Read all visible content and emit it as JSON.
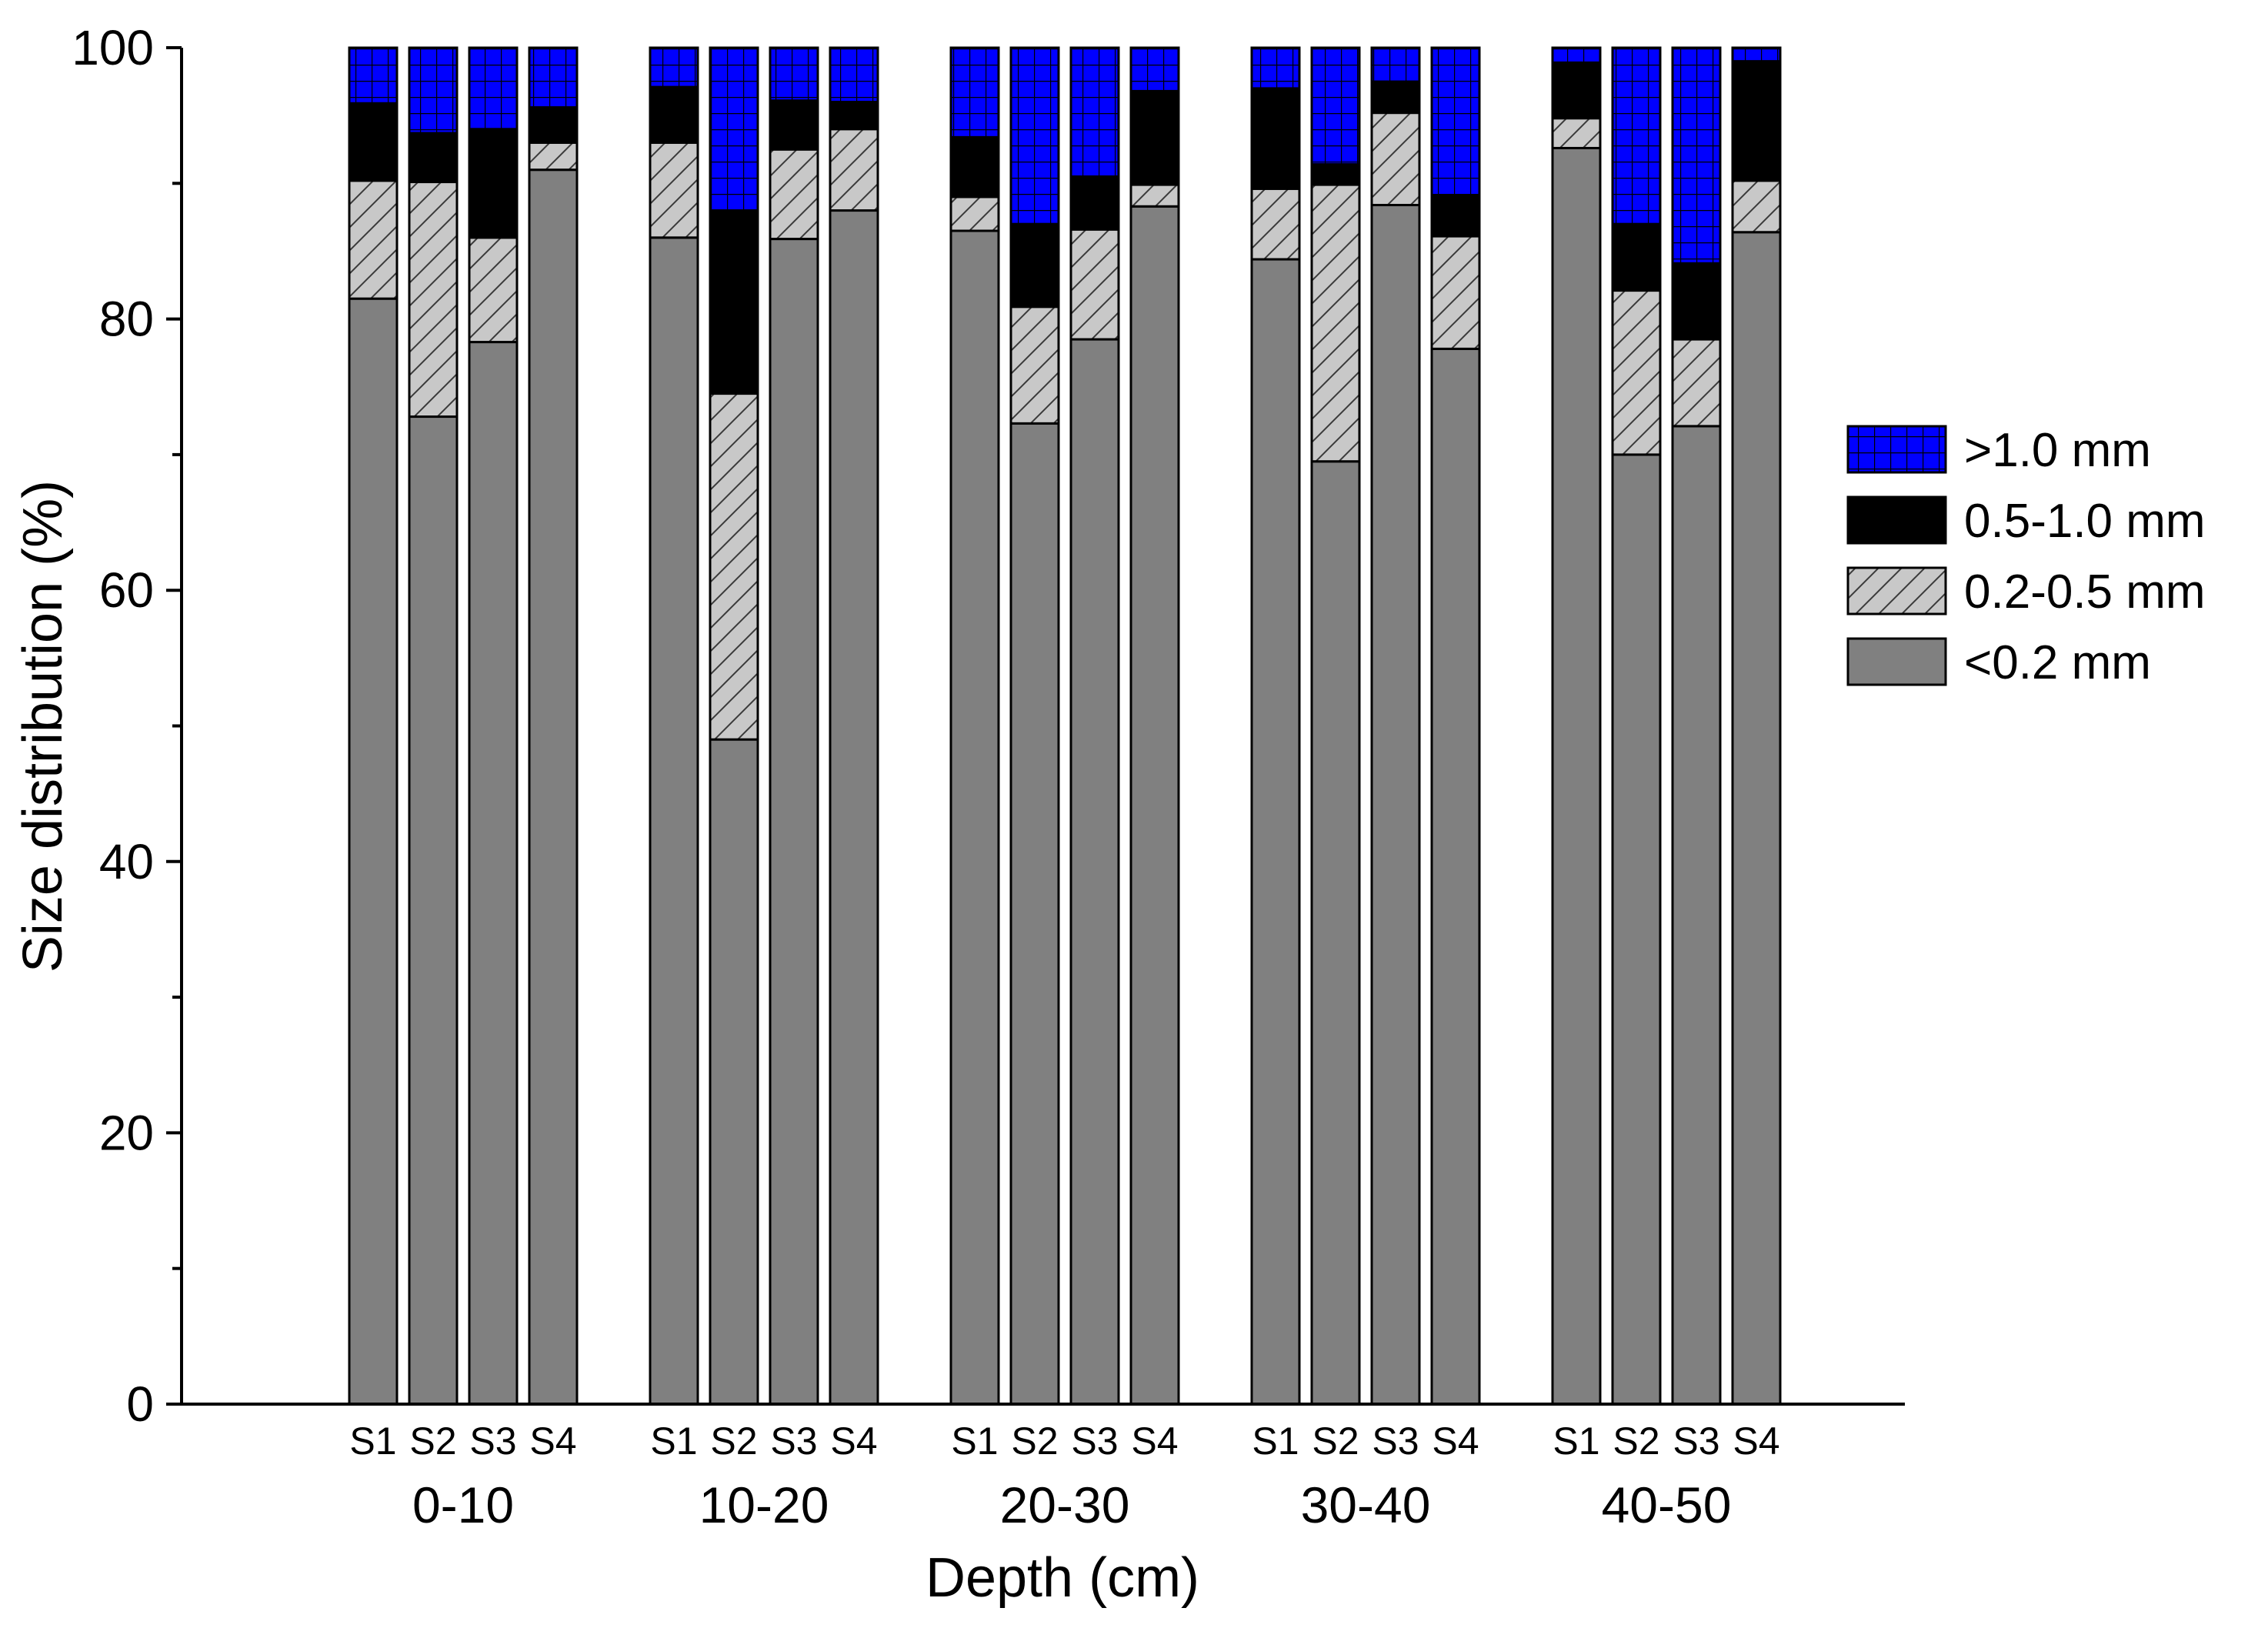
{
  "chart_data": {
    "type": "bar",
    "stacked": true,
    "title": "",
    "xlabel": "Depth (cm)",
    "ylabel": "Size distribution (%)",
    "ylim": [
      0,
      100
    ],
    "yticks": [
      "0",
      "20",
      "40",
      "60",
      "80",
      "100"
    ],
    "groups": [
      "0-10",
      "10-20",
      "20-30",
      "30-40",
      "40-50"
    ],
    "sites": [
      "S1",
      "S2",
      "S3",
      "S4"
    ],
    "series": [
      {
        "name": "<0.2 mm",
        "values": [
          [
            81.5,
            72.8,
            78.3,
            91.0
          ],
          [
            86.0,
            49.0,
            85.9,
            88.0
          ],
          [
            86.5,
            72.3,
            78.5,
            88.3
          ],
          [
            84.4,
            69.5,
            88.4,
            77.8
          ],
          [
            92.6,
            70.0,
            72.1,
            86.4
          ]
        ]
      },
      {
        "name": "0.2-0.5 mm",
        "values": [
          [
            8.7,
            17.3,
            7.7,
            2.0
          ],
          [
            7.0,
            25.5,
            6.6,
            6.0
          ],
          [
            2.5,
            8.6,
            8.1,
            1.6
          ],
          [
            5.2,
            20.4,
            6.8,
            8.3
          ],
          [
            2.2,
            12.1,
            6.4,
            3.8
          ]
        ]
      },
      {
        "name": "0.5-1.0 mm",
        "values": [
          [
            5.7,
            3.6,
            8.0,
            2.6
          ],
          [
            4.1,
            13.5,
            3.6,
            2.0
          ],
          [
            4.4,
            6.1,
            3.9,
            6.9
          ],
          [
            7.4,
            1.5,
            2.3,
            3.0
          ],
          [
            4.1,
            4.9,
            5.6,
            8.8
          ]
        ]
      },
      {
        "name": ">1.0 mm",
        "values": [
          [
            4.1,
            6.3,
            6.0,
            4.4
          ],
          [
            2.9,
            12.0,
            3.9,
            4.0
          ],
          [
            6.6,
            13.0,
            9.5,
            3.2
          ],
          [
            3.0,
            8.6,
            2.5,
            10.9
          ],
          [
            1.1,
            13.0,
            15.9,
            1.0
          ]
        ]
      }
    ],
    "colors": {
      "lt_0_2": "#808080",
      "p0_2_0_5": "#c8c8c8",
      "p0_5_1_0": "#000000",
      "gt_1_0": "#0000ff"
    },
    "legend_position": "right"
  }
}
